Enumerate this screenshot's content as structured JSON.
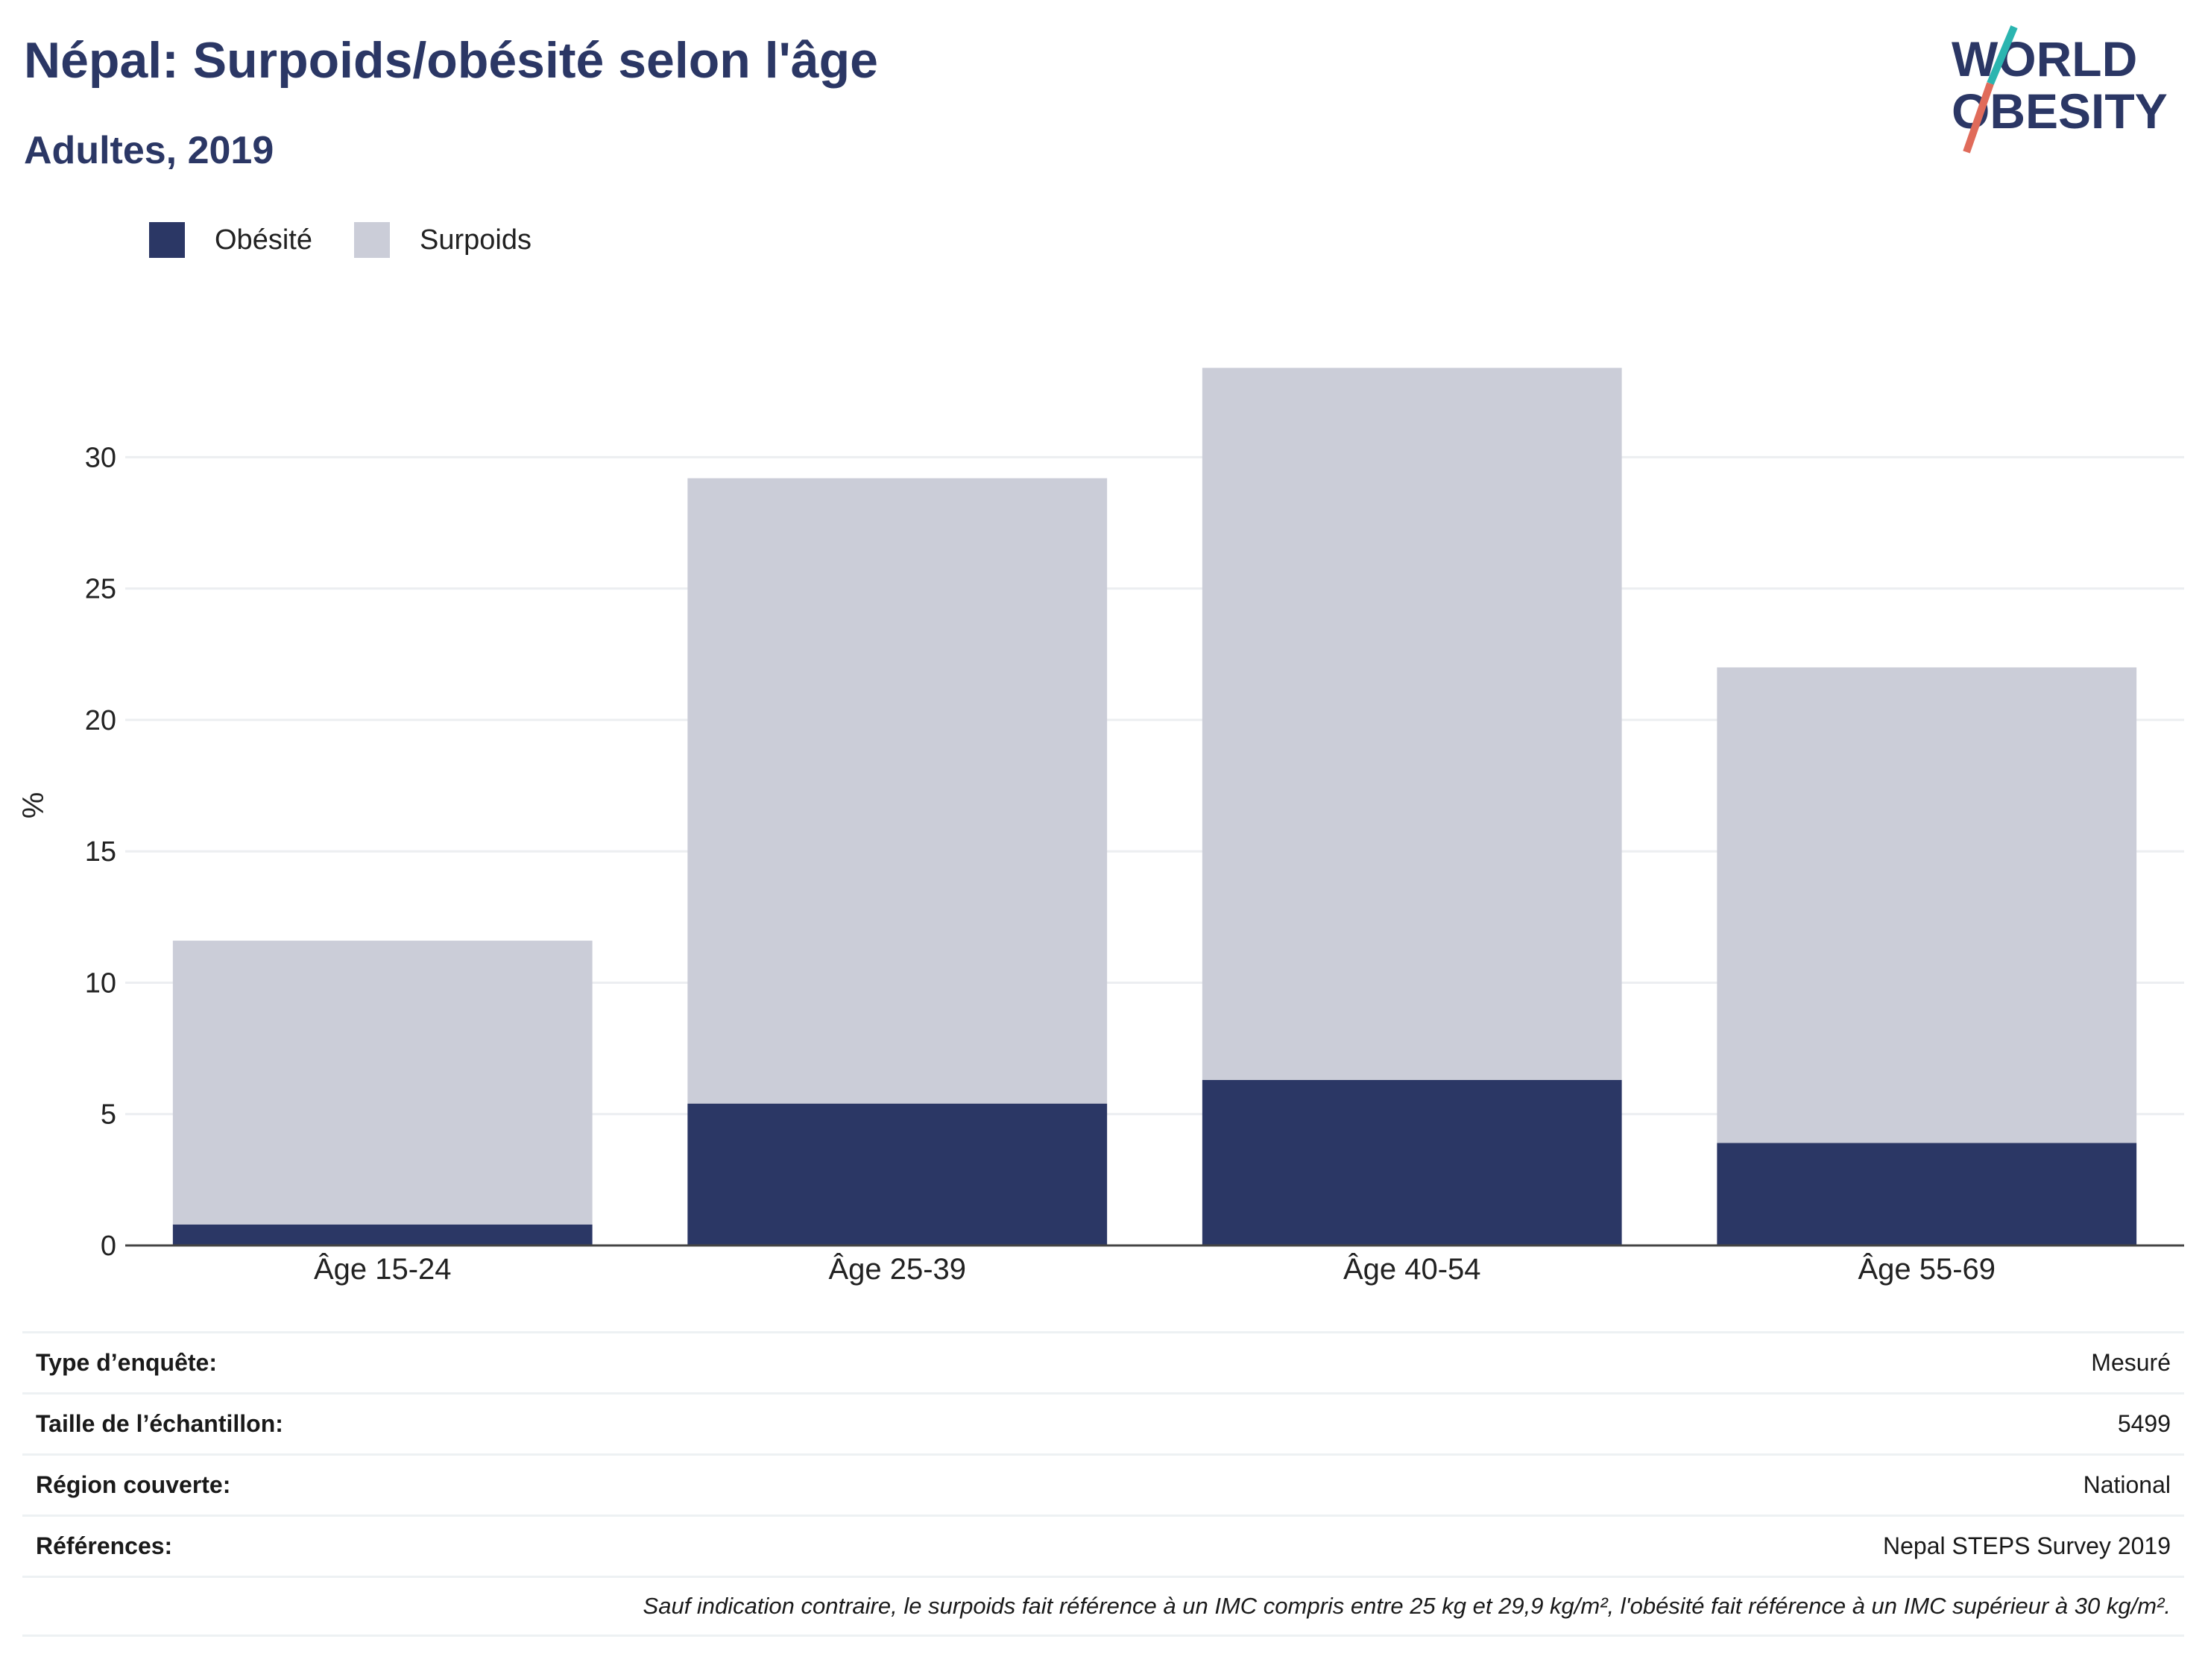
{
  "header": {
    "title": "Népal: Surpoids/obésité selon l'âge",
    "subtitle": "Adultes, 2019"
  },
  "logo": {
    "line1": "WORLD",
    "line2": "OBESITY"
  },
  "colors": {
    "obesity": "#2b3765",
    "overweight": "#cbcdd8",
    "title": "#2b3765",
    "logo_teal": "#2bb5b0",
    "logo_coral": "#e06b5a"
  },
  "legend": [
    {
      "label": "Obésité",
      "color": "#2b3765"
    },
    {
      "label": "Surpoids",
      "color": "#cbcdd8"
    }
  ],
  "chart_data": {
    "type": "bar",
    "stacked": true,
    "categories": [
      "Âge 15-24",
      "Âge 25-39",
      "Âge 40-54",
      "Âge 55-69"
    ],
    "series": [
      {
        "name": "Obésité",
        "values": [
          0.8,
          5.4,
          6.3,
          3.9
        ]
      },
      {
        "name": "Surpoids",
        "values": [
          10.8,
          23.8,
          27.1,
          18.1
        ]
      }
    ],
    "ylabel": "%",
    "ylim": [
      0,
      33.5
    ],
    "yticks": [
      0,
      5,
      10,
      15,
      20,
      25,
      30
    ],
    "grid": true,
    "legend_position": "top-left"
  },
  "meta": {
    "rows": [
      {
        "key": "Type d’enquête:",
        "value": "Mesuré"
      },
      {
        "key": "Taille de l’échantillon:",
        "value": "5499"
      },
      {
        "key": "Région couverte:",
        "value": "National"
      },
      {
        "key": "Références:",
        "value": "Nepal STEPS Survey 2019"
      }
    ],
    "note": "Sauf indication contraire, le surpoids fait référence à un IMC compris entre 25 kg et 29,9 kg/m², l'obésité fait référence à un IMC supérieur à 30 kg/m²."
  }
}
